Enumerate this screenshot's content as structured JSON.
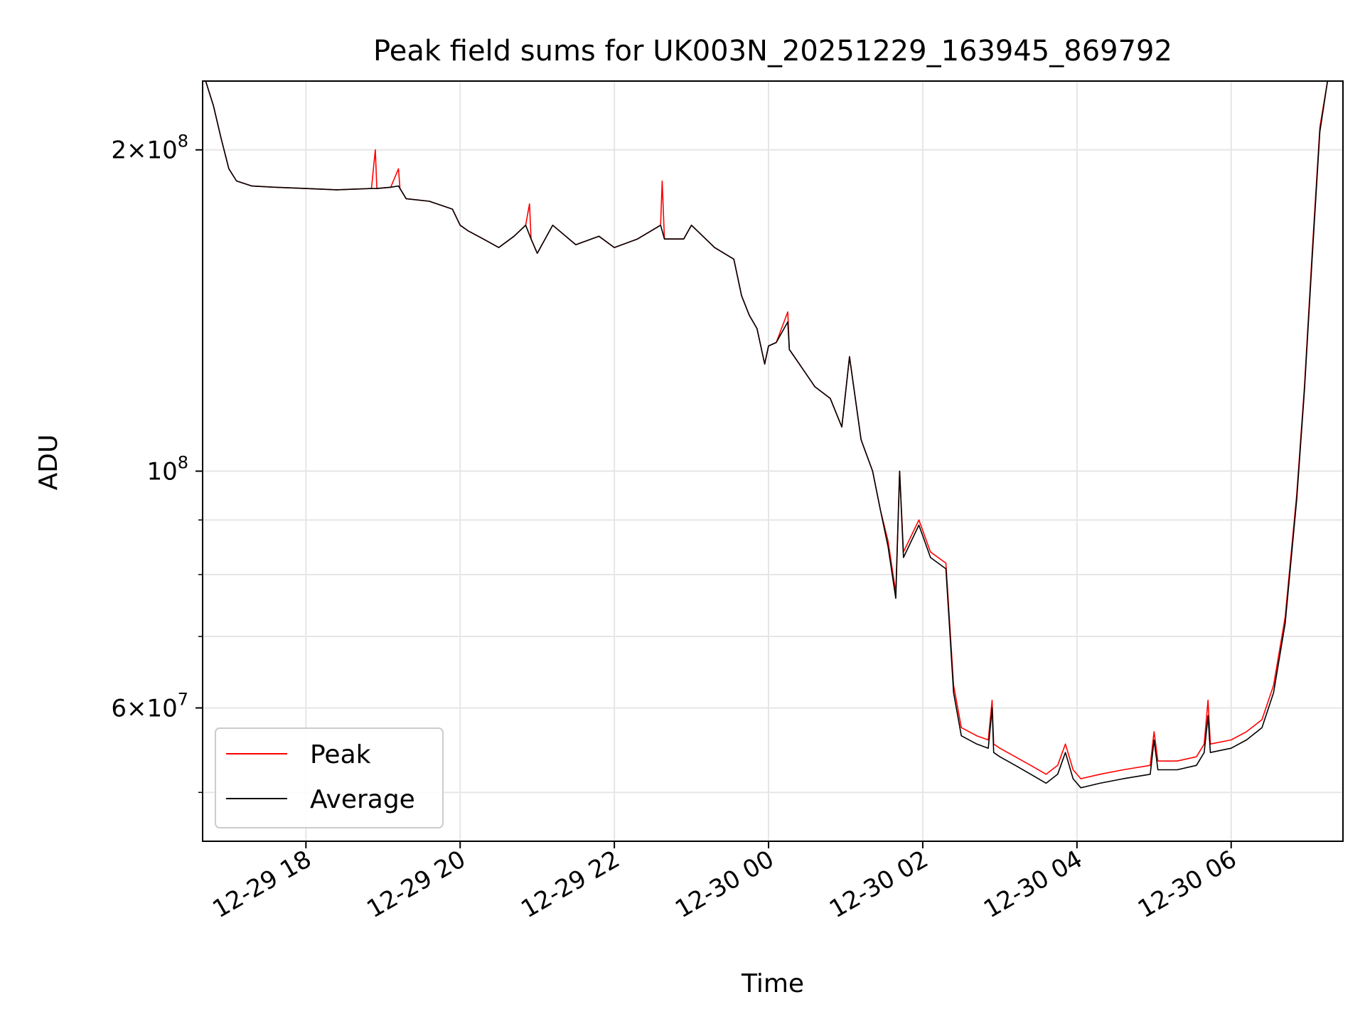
{
  "chart_data": {
    "type": "line",
    "title": "Peak field sums for UK003N_20251229_163945_869792",
    "xlabel": "Time",
    "ylabel": "ADU",
    "yscale": "log",
    "ylim": [
      45000000,
      232000000
    ],
    "xlim_hours": [
      16.66,
      31.45
    ],
    "grid": true,
    "legend_location": "lower-left",
    "x_ticks": [
      {
        "hour": 18,
        "label": "12-29 18"
      },
      {
        "hour": 20,
        "label": "12-29 20"
      },
      {
        "hour": 22,
        "label": "12-29 22"
      },
      {
        "hour": 24,
        "label": "12-30 00"
      },
      {
        "hour": 26,
        "label": "12-30 02"
      },
      {
        "hour": 28,
        "label": "12-30 04"
      },
      {
        "hour": 30,
        "label": "12-30 06"
      }
    ],
    "y_major_ticks": [
      {
        "value": 200000000,
        "mantissa": "2",
        "exponent": "8"
      },
      {
        "value": 100000000,
        "mantissa": "",
        "exponent": "8"
      },
      {
        "value": 60000000,
        "mantissa": "6",
        "exponent": "7"
      }
    ],
    "y_minor_ticks": [
      50000000,
      70000000,
      80000000,
      90000000
    ],
    "x_unit": "hours since 12-29 00:00",
    "series": [
      {
        "name": "Peak",
        "color": "#ff0000",
        "points": [
          [
            16.7,
            232000000
          ],
          [
            16.8,
            220000000
          ],
          [
            16.9,
            205000000
          ],
          [
            17.0,
            192000000
          ],
          [
            17.1,
            187000000
          ],
          [
            17.3,
            185000000
          ],
          [
            17.6,
            184500000
          ],
          [
            18.0,
            184000000
          ],
          [
            18.4,
            183500000
          ],
          [
            18.85,
            184000000
          ],
          [
            18.9,
            200000000
          ],
          [
            18.92,
            184000000
          ],
          [
            19.1,
            184500000
          ],
          [
            19.2,
            192000000
          ],
          [
            19.22,
            184000000
          ],
          [
            19.3,
            180000000
          ],
          [
            19.6,
            179000000
          ],
          [
            19.9,
            176000000
          ],
          [
            20.0,
            170000000
          ],
          [
            20.1,
            168000000
          ],
          [
            20.3,
            165000000
          ],
          [
            20.5,
            162000000
          ],
          [
            20.7,
            166000000
          ],
          [
            20.85,
            170000000
          ],
          [
            20.9,
            178000000
          ],
          [
            20.92,
            165000000
          ],
          [
            21.0,
            160000000
          ],
          [
            21.2,
            170000000
          ],
          [
            21.5,
            163000000
          ],
          [
            21.8,
            166000000
          ],
          [
            22.0,
            162000000
          ],
          [
            22.3,
            165000000
          ],
          [
            22.6,
            170000000
          ],
          [
            22.62,
            187000000
          ],
          [
            22.65,
            165000000
          ],
          [
            22.9,
            165000000
          ],
          [
            23.0,
            170000000
          ],
          [
            23.3,
            162000000
          ],
          [
            23.55,
            158000000
          ],
          [
            23.65,
            146000000
          ],
          [
            23.75,
            140000000
          ],
          [
            23.85,
            136000000
          ],
          [
            23.95,
            126000000
          ],
          [
            24.0,
            131000000
          ],
          [
            24.1,
            132000000
          ],
          [
            24.25,
            141000000
          ],
          [
            24.27,
            130000000
          ],
          [
            24.4,
            126000000
          ],
          [
            24.6,
            120000000
          ],
          [
            24.8,
            117000000
          ],
          [
            24.95,
            110000000
          ],
          [
            25.05,
            128000000
          ],
          [
            25.2,
            107000000
          ],
          [
            25.35,
            100000000
          ],
          [
            25.45,
            92000000
          ],
          [
            25.55,
            86000000
          ],
          [
            25.65,
            77000000
          ],
          [
            25.7,
            100000000
          ],
          [
            25.75,
            84000000
          ],
          [
            25.95,
            90000000
          ],
          [
            26.0,
            88000000
          ],
          [
            26.1,
            84000000
          ],
          [
            26.2,
            83000000
          ],
          [
            26.3,
            82000000
          ],
          [
            26.4,
            63000000
          ],
          [
            26.5,
            57500000
          ],
          [
            26.7,
            56500000
          ],
          [
            26.85,
            56000000
          ],
          [
            26.9,
            61000000
          ],
          [
            26.92,
            55500000
          ],
          [
            27.0,
            55000000
          ],
          [
            27.2,
            54000000
          ],
          [
            27.4,
            53000000
          ],
          [
            27.6,
            52000000
          ],
          [
            27.75,
            53000000
          ],
          [
            27.85,
            55500000
          ],
          [
            27.95,
            52500000
          ],
          [
            28.05,
            51500000
          ],
          [
            28.3,
            52000000
          ],
          [
            28.6,
            52500000
          ],
          [
            28.95,
            53000000
          ],
          [
            29.0,
            57000000
          ],
          [
            29.05,
            53500000
          ],
          [
            29.3,
            53500000
          ],
          [
            29.55,
            54000000
          ],
          [
            29.65,
            55500000
          ],
          [
            29.7,
            61000000
          ],
          [
            29.73,
            55500000
          ],
          [
            30.0,
            56000000
          ],
          [
            30.2,
            57000000
          ],
          [
            30.4,
            58500000
          ],
          [
            30.55,
            63000000
          ],
          [
            30.7,
            73000000
          ],
          [
            30.85,
            95000000
          ],
          [
            30.95,
            120000000
          ],
          [
            31.05,
            160000000
          ],
          [
            31.15,
            210000000
          ],
          [
            31.25,
            232000000
          ]
        ]
      },
      {
        "name": "Average",
        "color": "#000000",
        "points": [
          [
            16.7,
            232000000
          ],
          [
            16.8,
            220000000
          ],
          [
            16.9,
            205000000
          ],
          [
            17.0,
            192000000
          ],
          [
            17.1,
            187000000
          ],
          [
            17.3,
            185000000
          ],
          [
            17.6,
            184500000
          ],
          [
            18.0,
            184000000
          ],
          [
            18.4,
            183500000
          ],
          [
            18.85,
            184000000
          ],
          [
            18.92,
            184000000
          ],
          [
            19.1,
            184500000
          ],
          [
            19.2,
            185000000
          ],
          [
            19.3,
            180000000
          ],
          [
            19.6,
            179000000
          ],
          [
            19.9,
            176000000
          ],
          [
            20.0,
            170000000
          ],
          [
            20.1,
            168000000
          ],
          [
            20.3,
            165000000
          ],
          [
            20.5,
            162000000
          ],
          [
            20.7,
            166000000
          ],
          [
            20.85,
            170000000
          ],
          [
            20.92,
            165000000
          ],
          [
            21.0,
            160000000
          ],
          [
            21.2,
            170000000
          ],
          [
            21.5,
            163000000
          ],
          [
            21.8,
            166000000
          ],
          [
            22.0,
            162000000
          ],
          [
            22.3,
            165000000
          ],
          [
            22.6,
            170000000
          ],
          [
            22.65,
            165000000
          ],
          [
            22.9,
            165000000
          ],
          [
            23.0,
            170000000
          ],
          [
            23.3,
            162000000
          ],
          [
            23.55,
            158000000
          ],
          [
            23.65,
            146000000
          ],
          [
            23.75,
            140000000
          ],
          [
            23.85,
            136000000
          ],
          [
            23.95,
            126000000
          ],
          [
            24.0,
            131000000
          ],
          [
            24.1,
            132000000
          ],
          [
            24.25,
            138000000
          ],
          [
            24.27,
            130000000
          ],
          [
            24.4,
            126000000
          ],
          [
            24.6,
            120000000
          ],
          [
            24.8,
            117000000
          ],
          [
            24.95,
            110000000
          ],
          [
            25.05,
            128000000
          ],
          [
            25.2,
            107000000
          ],
          [
            25.35,
            100000000
          ],
          [
            25.45,
            92000000
          ],
          [
            25.55,
            85000000
          ],
          [
            25.65,
            76000000
          ],
          [
            25.7,
            100000000
          ],
          [
            25.75,
            83000000
          ],
          [
            25.95,
            89000000
          ],
          [
            26.0,
            87000000
          ],
          [
            26.1,
            83000000
          ],
          [
            26.2,
            82000000
          ],
          [
            26.3,
            81000000
          ],
          [
            26.4,
            62000000
          ],
          [
            26.5,
            56500000
          ],
          [
            26.7,
            55500000
          ],
          [
            26.85,
            55000000
          ],
          [
            26.9,
            60000000
          ],
          [
            26.92,
            54500000
          ],
          [
            27.0,
            54000000
          ],
          [
            27.2,
            53000000
          ],
          [
            27.4,
            52000000
          ],
          [
            27.6,
            51000000
          ],
          [
            27.75,
            52000000
          ],
          [
            27.85,
            54500000
          ],
          [
            27.95,
            51500000
          ],
          [
            28.05,
            50500000
          ],
          [
            28.3,
            51000000
          ],
          [
            28.6,
            51500000
          ],
          [
            28.95,
            52000000
          ],
          [
            29.0,
            56000000
          ],
          [
            29.05,
            52500000
          ],
          [
            29.3,
            52500000
          ],
          [
            29.55,
            53000000
          ],
          [
            29.65,
            54500000
          ],
          [
            29.7,
            59000000
          ],
          [
            29.73,
            54500000
          ],
          [
            30.0,
            55000000
          ],
          [
            30.2,
            56000000
          ],
          [
            30.4,
            57500000
          ],
          [
            30.55,
            62000000
          ],
          [
            30.7,
            72000000
          ],
          [
            30.85,
            94000000
          ],
          [
            30.95,
            119000000
          ],
          [
            31.05,
            158000000
          ],
          [
            31.15,
            208000000
          ],
          [
            31.25,
            232000000
          ]
        ]
      }
    ]
  }
}
